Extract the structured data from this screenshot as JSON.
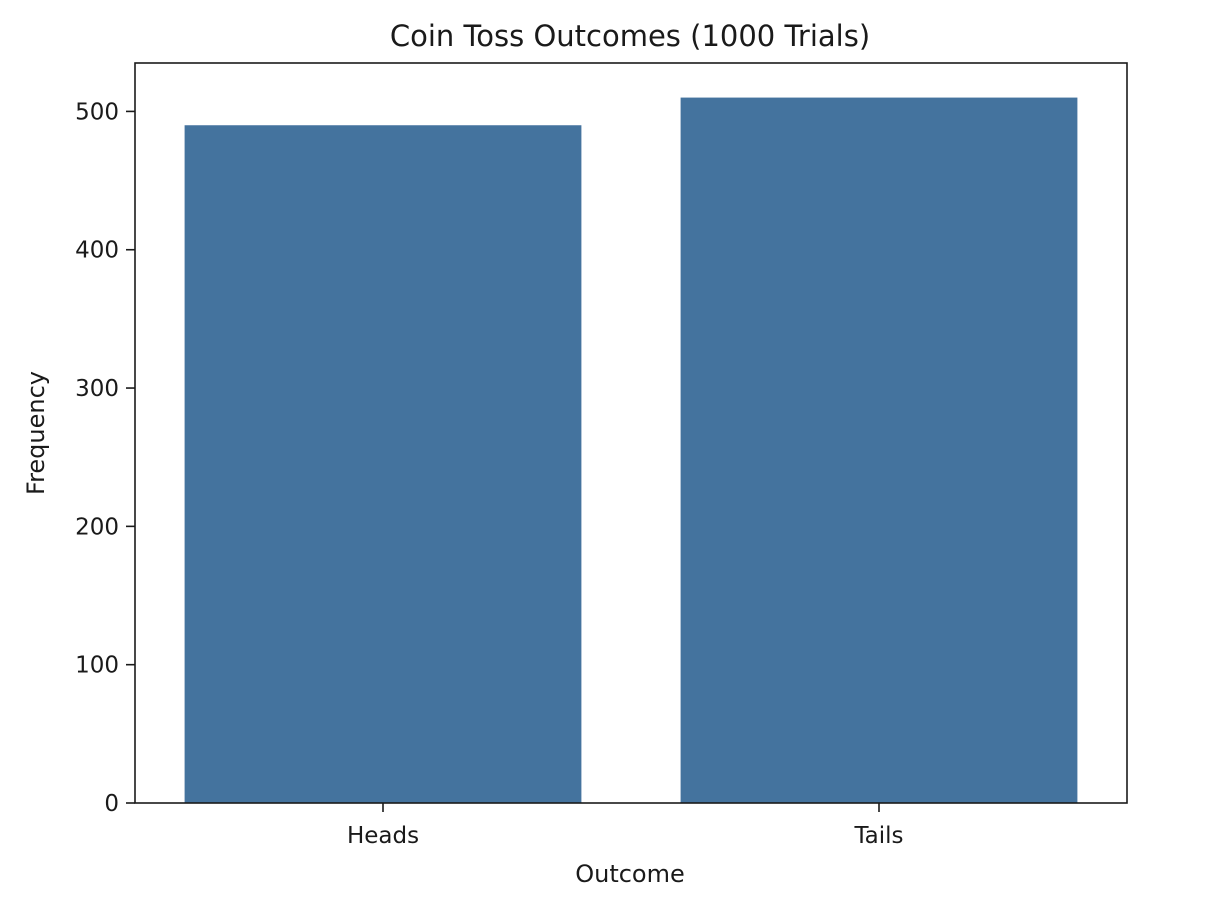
{
  "chart_data": {
    "type": "bar",
    "title": "Coin Toss Outcomes (1000 Trials)",
    "xlabel": "Outcome",
    "ylabel": "Frequency",
    "categories": [
      "Heads",
      "Tails"
    ],
    "values": [
      490,
      510
    ],
    "ylim": [
      0,
      535
    ],
    "yticks": [
      0,
      100,
      200,
      300,
      400,
      500
    ],
    "grid": false,
    "bar_color": "#44739e"
  }
}
